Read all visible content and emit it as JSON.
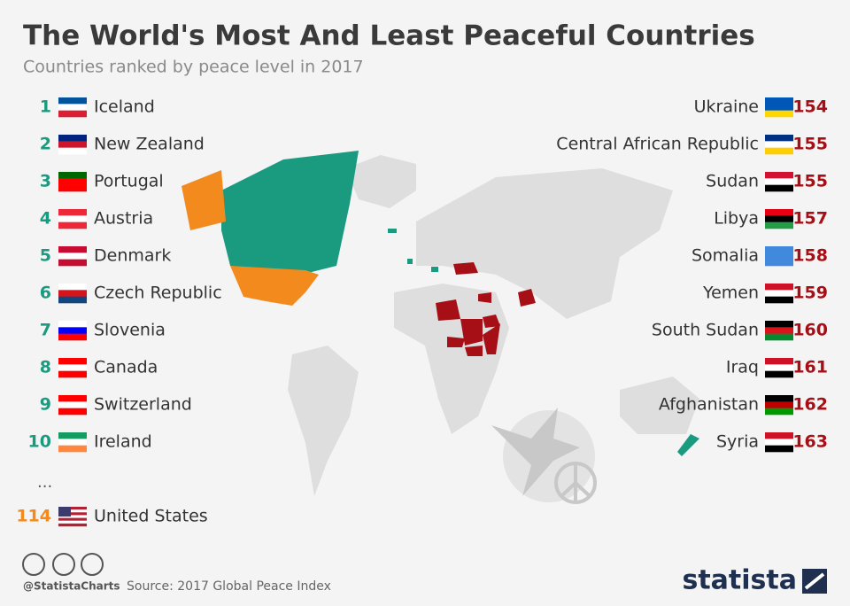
{
  "header": {
    "title": "The World's Most And Least Peaceful Countries",
    "subtitle": "Countries ranked by peace level in 2017"
  },
  "most_peaceful": [
    {
      "rank": "1",
      "country": "Iceland"
    },
    {
      "rank": "2",
      "country": "New Zealand"
    },
    {
      "rank": "3",
      "country": "Portugal"
    },
    {
      "rank": "4",
      "country": "Austria"
    },
    {
      "rank": "5",
      "country": "Denmark"
    },
    {
      "rank": "6",
      "country": "Czech Republic"
    },
    {
      "rank": "7",
      "country": "Slovenia"
    },
    {
      "rank": "8",
      "country": "Canada"
    },
    {
      "rank": "9",
      "country": "Switzerland"
    },
    {
      "rank": "10",
      "country": "Ireland"
    }
  ],
  "ellipsis": "...",
  "united_states": {
    "rank": "114",
    "country": "United States"
  },
  "least_peaceful": [
    {
      "country": "Ukraine",
      "rank": "154"
    },
    {
      "country": "Central African Republic",
      "rank": "155"
    },
    {
      "country": "Sudan",
      "rank": "155"
    },
    {
      "country": "Libya",
      "rank": "157"
    },
    {
      "country": "Somalia",
      "rank": "158"
    },
    {
      "country": "Yemen",
      "rank": "159"
    },
    {
      "country": "South Sudan",
      "rank": "160"
    },
    {
      "country": "Iraq",
      "rank": "161"
    },
    {
      "country": "Afghanistan",
      "rank": "162"
    },
    {
      "country": "Syria",
      "rank": "163"
    }
  ],
  "footer": {
    "handle": "@StatistaCharts",
    "source": "Source: 2017 Global Peace Index",
    "brand": "statista"
  }
}
